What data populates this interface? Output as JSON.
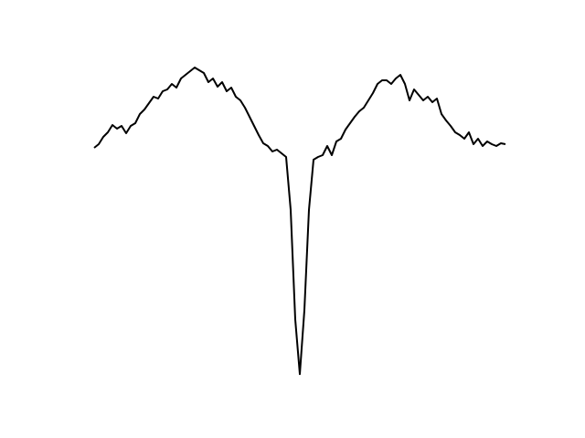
{
  "chart_data": {
    "type": "line",
    "color": "#000000",
    "ylim": [
      0,
      369
    ],
    "values": [
      265,
      269,
      277,
      282,
      290,
      286,
      289,
      281,
      289,
      292,
      302,
      307,
      314,
      321,
      319,
      327,
      329,
      335,
      331,
      341,
      345,
      349,
      353,
      350,
      347,
      337,
      341,
      332,
      337,
      327,
      331,
      321,
      317,
      309,
      299,
      289,
      279,
      270,
      267,
      261,
      263,
      259,
      255,
      197,
      77,
      17,
      87,
      197,
      252,
      255,
      257,
      267,
      257,
      272,
      275,
      285,
      292,
      299,
      305,
      309,
      317,
      325,
      335,
      339,
      339,
      335,
      341,
      345,
      335,
      317,
      329,
      323,
      317,
      321,
      315,
      319,
      302,
      295,
      289,
      282,
      279,
      275,
      282,
      269,
      275,
      267,
      272,
      269,
      267,
      270,
      269
    ]
  }
}
